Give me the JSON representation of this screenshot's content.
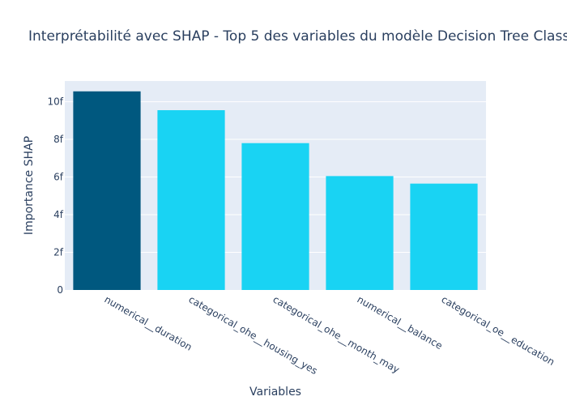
{
  "chart_data": {
    "type": "bar",
    "title": "Interprétabilité avec SHAP - Top 5 des variables du modèle Decision Tree Class",
    "xlabel": "Variables",
    "ylabel": "Importance SHAP",
    "categories": [
      "numerical__duration",
      "categorical_ohe__housing_yes",
      "categorical_ohe__month_may",
      "numerical__balance",
      "categorical_oe__education"
    ],
    "values": [
      10.55,
      9.55,
      7.8,
      6.05,
      5.65
    ],
    "bar_colors": [
      "#00587f",
      "#19d3f3",
      "#19d3f3",
      "#19d3f3",
      "#19d3f3"
    ],
    "ylim": [
      0,
      11.1
    ],
    "yticks": [
      0,
      2,
      4,
      6,
      8,
      10
    ],
    "ytick_labels": [
      "0",
      "2f",
      "4f",
      "6f",
      "8f",
      "10f"
    ],
    "grid": true,
    "plot_bg": "#e5ecf6",
    "gridline_color": "#ffffff",
    "text_color": "#2a3f5f"
  }
}
